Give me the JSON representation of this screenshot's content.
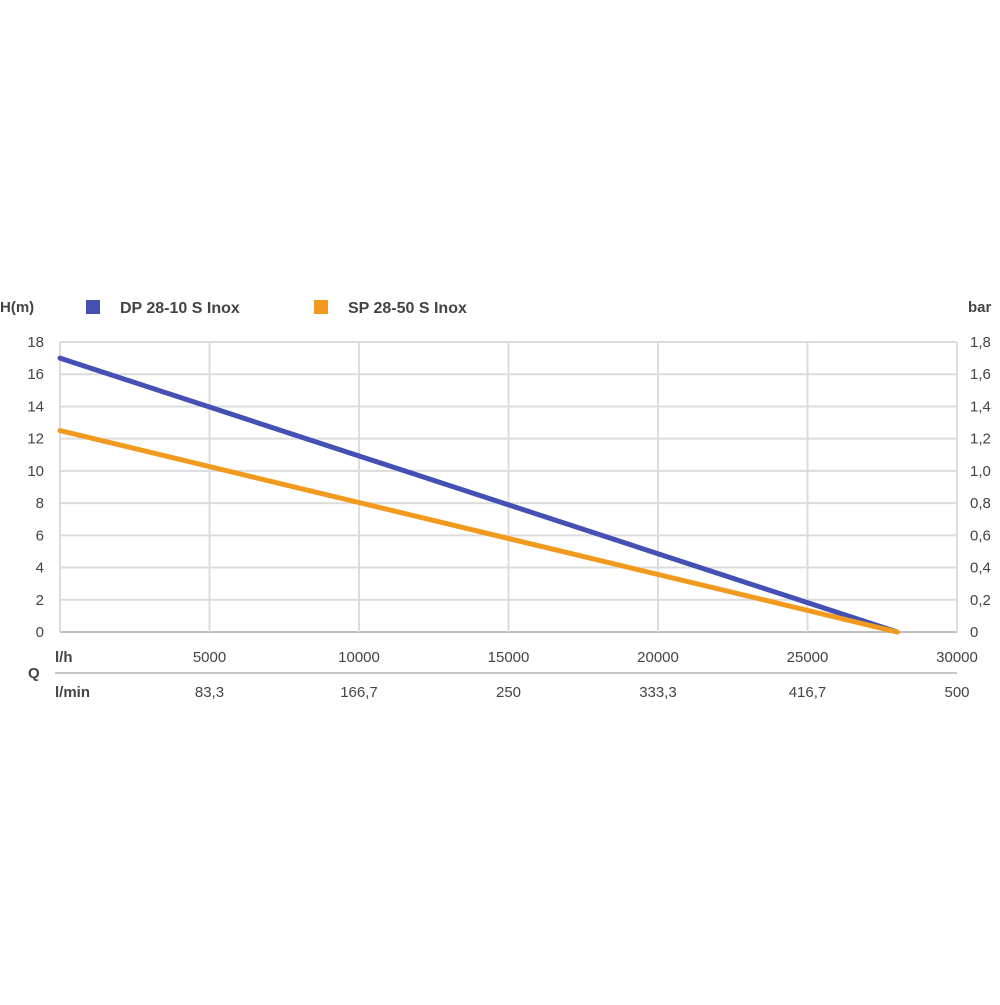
{
  "chart_data": {
    "type": "line",
    "y_left_title": "H(m)",
    "y_right_title": "bar",
    "x_row_label": "Q",
    "x_unit_primary": "l/h",
    "x_unit_secondary": "l/min",
    "xlim": [
      0,
      30000
    ],
    "ylim": [
      0,
      18
    ],
    "y_left_ticks": [
      "0",
      "2",
      "4",
      "6",
      "8",
      "10",
      "12",
      "14",
      "16",
      "18"
    ],
    "y_right_ticks": [
      "0",
      "0,2",
      "0,4",
      "0,6",
      "0,8",
      "1,0",
      "1,2",
      "1,4",
      "1,6",
      "1,8"
    ],
    "x_ticks": [
      "5000",
      "10000",
      "15000",
      "20000",
      "25000",
      "30000"
    ],
    "x_ticks_secondary": [
      "83,3",
      "166,7",
      "250",
      "333,3",
      "416,7",
      "500"
    ],
    "grid": true,
    "legend_position": "top-left",
    "series": [
      {
        "name": "DP 28-10 S Inox",
        "color": "#4550b5",
        "x": [
          0,
          28000
        ],
        "y": [
          17,
          0
        ]
      },
      {
        "name": "SP 28-50 S Inox",
        "color": "#f29a1d",
        "x": [
          0,
          28000
        ],
        "y": [
          12.5,
          0
        ]
      }
    ]
  }
}
